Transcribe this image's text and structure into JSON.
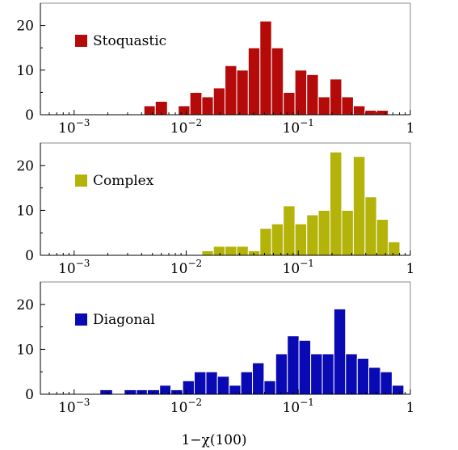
{
  "chart_data": [
    {
      "type": "bar",
      "legend": "Stoquastic",
      "color": "#b50a0a",
      "x_scale": "log",
      "xlim": [
        0.0005,
        1
      ],
      "ylim": [
        0,
        25
      ],
      "y_ticks": [
        0,
        10,
        20
      ],
      "x_tick_labels": [
        "10−3",
        "10−2",
        "10−1",
        "1"
      ],
      "x_tick_values": [
        0.001,
        0.01,
        0.1,
        1
      ],
      "bins": [
        {
          "x0": 0.0042,
          "x1": 0.0053,
          "value": 2
        },
        {
          "x0": 0.0053,
          "x1": 0.0068,
          "value": 3
        },
        {
          "x0": 0.0085,
          "x1": 0.0108,
          "value": 2
        },
        {
          "x0": 0.0108,
          "x1": 0.0138,
          "value": 5
        },
        {
          "x0": 0.0138,
          "x1": 0.0175,
          "value": 4
        },
        {
          "x0": 0.0175,
          "x1": 0.0222,
          "value": 6
        },
        {
          "x0": 0.0222,
          "x1": 0.0282,
          "value": 11
        },
        {
          "x0": 0.0282,
          "x1": 0.0358,
          "value": 10
        },
        {
          "x0": 0.0358,
          "x1": 0.0455,
          "value": 15
        },
        {
          "x0": 0.0455,
          "x1": 0.0578,
          "value": 21
        },
        {
          "x0": 0.0578,
          "x1": 0.0735,
          "value": 15
        },
        {
          "x0": 0.0735,
          "x1": 0.0934,
          "value": 5
        },
        {
          "x0": 0.0934,
          "x1": 0.119,
          "value": 10
        },
        {
          "x0": 0.119,
          "x1": 0.151,
          "value": 9
        },
        {
          "x0": 0.151,
          "x1": 0.192,
          "value": 4
        },
        {
          "x0": 0.192,
          "x1": 0.244,
          "value": 8
        },
        {
          "x0": 0.244,
          "x1": 0.31,
          "value": 4
        },
        {
          "x0": 0.31,
          "x1": 0.394,
          "value": 2
        },
        {
          "x0": 0.394,
          "x1": 0.5,
          "value": 1
        },
        {
          "x0": 0.5,
          "x1": 0.635,
          "value": 1
        }
      ]
    },
    {
      "type": "bar",
      "legend": "Complex",
      "color": "#b3b30a",
      "x_scale": "log",
      "xlim": [
        0.0005,
        1
      ],
      "ylim": [
        0,
        25
      ],
      "y_ticks": [
        0,
        10,
        20
      ],
      "x_tick_labels": [
        "10−3",
        "10−2",
        "10−1",
        "1"
      ],
      "x_tick_values": [
        0.001,
        0.01,
        0.1,
        1
      ],
      "bins": [
        {
          "x0": 0.0138,
          "x1": 0.0175,
          "value": 1
        },
        {
          "x0": 0.0175,
          "x1": 0.0222,
          "value": 2
        },
        {
          "x0": 0.0222,
          "x1": 0.0282,
          "value": 2
        },
        {
          "x0": 0.0282,
          "x1": 0.0358,
          "value": 2
        },
        {
          "x0": 0.0358,
          "x1": 0.0455,
          "value": 1
        },
        {
          "x0": 0.0455,
          "x1": 0.0578,
          "value": 6
        },
        {
          "x0": 0.0578,
          "x1": 0.0735,
          "value": 7
        },
        {
          "x0": 0.0735,
          "x1": 0.0934,
          "value": 11
        },
        {
          "x0": 0.0934,
          "x1": 0.119,
          "value": 7
        },
        {
          "x0": 0.119,
          "x1": 0.151,
          "value": 9
        },
        {
          "x0": 0.151,
          "x1": 0.192,
          "value": 10
        },
        {
          "x0": 0.192,
          "x1": 0.244,
          "value": 23
        },
        {
          "x0": 0.244,
          "x1": 0.31,
          "value": 10
        },
        {
          "x0": 0.31,
          "x1": 0.394,
          "value": 22
        },
        {
          "x0": 0.394,
          "x1": 0.5,
          "value": 13
        },
        {
          "x0": 0.5,
          "x1": 0.635,
          "value": 8
        },
        {
          "x0": 0.635,
          "x1": 0.806,
          "value": 3
        }
      ]
    },
    {
      "type": "bar",
      "legend": "Diagonal",
      "color": "#0a0ab4",
      "x_scale": "log",
      "xlim": [
        0.0005,
        1
      ],
      "ylim": [
        0,
        25
      ],
      "y_ticks": [
        0,
        10,
        20
      ],
      "x_tick_labels": [
        "10−3",
        "10−2",
        "10−1",
        "1"
      ],
      "x_tick_values": [
        0.001,
        0.01,
        0.1,
        1
      ],
      "xlabel": "1−χ(100)",
      "bins": [
        {
          "x0": 0.0017,
          "x1": 0.0022,
          "value": 1
        },
        {
          "x0": 0.0028,
          "x1": 0.0036,
          "value": 1
        },
        {
          "x0": 0.0036,
          "x1": 0.0045,
          "value": 1
        },
        {
          "x0": 0.0045,
          "x1": 0.0058,
          "value": 1
        },
        {
          "x0": 0.0058,
          "x1": 0.0073,
          "value": 2
        },
        {
          "x0": 0.0073,
          "x1": 0.0093,
          "value": 1
        },
        {
          "x0": 0.0093,
          "x1": 0.0118,
          "value": 3
        },
        {
          "x0": 0.0118,
          "x1": 0.015,
          "value": 5
        },
        {
          "x0": 0.015,
          "x1": 0.019,
          "value": 5
        },
        {
          "x0": 0.019,
          "x1": 0.0242,
          "value": 4
        },
        {
          "x0": 0.0242,
          "x1": 0.0307,
          "value": 2
        },
        {
          "x0": 0.0307,
          "x1": 0.039,
          "value": 5
        },
        {
          "x0": 0.039,
          "x1": 0.0495,
          "value": 7
        },
        {
          "x0": 0.0495,
          "x1": 0.0629,
          "value": 3
        },
        {
          "x0": 0.0629,
          "x1": 0.0799,
          "value": 9
        },
        {
          "x0": 0.0799,
          "x1": 0.1015,
          "value": 13
        },
        {
          "x0": 0.1015,
          "x1": 0.129,
          "value": 12
        },
        {
          "x0": 0.129,
          "x1": 0.164,
          "value": 9
        },
        {
          "x0": 0.164,
          "x1": 0.208,
          "value": 9
        },
        {
          "x0": 0.208,
          "x1": 0.264,
          "value": 19
        },
        {
          "x0": 0.264,
          "x1": 0.336,
          "value": 9
        },
        {
          "x0": 0.336,
          "x1": 0.426,
          "value": 8
        },
        {
          "x0": 0.426,
          "x1": 0.541,
          "value": 6
        },
        {
          "x0": 0.541,
          "x1": 0.688,
          "value": 5
        },
        {
          "x0": 0.688,
          "x1": 0.874,
          "value": 2
        }
      ]
    }
  ]
}
